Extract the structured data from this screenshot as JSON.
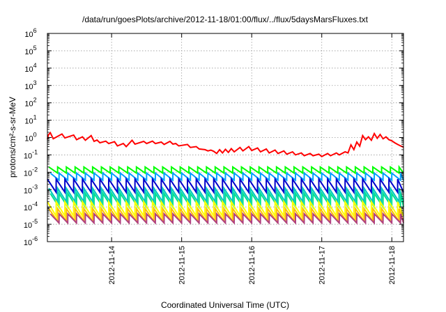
{
  "chart_data": {
    "type": "line",
    "title": "/data/run/goesPlots/archive/2012-11-18/01:00/flux/../flux/5daysMarsFluxes.txt",
    "xlabel": "Coordinated Universal Time (UTC)",
    "ylabel": "protons/cm²-s-sr-MeV",
    "yscale": "log",
    "ylim": [
      1e-06,
      1000000.0
    ],
    "xlim": [
      "2012-11-13 02:00",
      "2012-11-18 04:00"
    ],
    "grid": true,
    "legend": "none",
    "yticks": [
      {
        "base": "10",
        "exp": "-6"
      },
      {
        "base": "10",
        "exp": "-5"
      },
      {
        "base": "10",
        "exp": "-4"
      },
      {
        "base": "10",
        "exp": "-3"
      },
      {
        "base": "10",
        "exp": "-2"
      },
      {
        "base": "10",
        "exp": "-1"
      },
      {
        "base": "10",
        "exp": "0"
      },
      {
        "base": "10",
        "exp": "1"
      },
      {
        "base": "10",
        "exp": "2"
      },
      {
        "base": "10",
        "exp": "3"
      },
      {
        "base": "10",
        "exp": "4"
      },
      {
        "base": "10",
        "exp": "5"
      },
      {
        "base": "10",
        "exp": "6"
      }
    ],
    "xticks": [
      {
        "label": "2012-11-14",
        "value": "2012-11-14 00:00"
      },
      {
        "label": "2012-11-15",
        "value": "2012-11-15 00:00"
      },
      {
        "label": "2012-11-16",
        "value": "2012-11-16 00:00"
      },
      {
        "label": "2012-11-17",
        "value": "2012-11-17 00:00"
      },
      {
        "label": "2012-11-18",
        "value": "2012-11-18 00:00"
      }
    ],
    "series": [
      {
        "color": "#ff0000",
        "values": [
          [
            "2012-11-13 02:00",
            0.8
          ],
          [
            "2012-11-13 02:20",
            1.4
          ],
          [
            "2012-11-13 03:00",
            1.9
          ],
          [
            "2012-11-13 04:00",
            0.85
          ],
          [
            "2012-11-13 07:00",
            1.6
          ],
          [
            "2012-11-13 08:00",
            0.95
          ],
          [
            "2012-11-13 11:00",
            1.4
          ],
          [
            "2012-11-13 12:00",
            0.75
          ],
          [
            "2012-11-13 14:00",
            1.1
          ],
          [
            "2012-11-13 15:00",
            0.7
          ],
          [
            "2012-11-13 17:00",
            1.3
          ],
          [
            "2012-11-13 18:00",
            0.6
          ],
          [
            "2012-11-13 19:00",
            0.72
          ],
          [
            "2012-11-13 20:00",
            0.5
          ],
          [
            "2012-11-13 22:00",
            0.62
          ],
          [
            "2012-11-13 23:00",
            0.45
          ],
          [
            "2012-11-14 01:00",
            0.58
          ],
          [
            "2012-11-14 02:00",
            0.33
          ],
          [
            "2012-11-14 04:00",
            0.45
          ],
          [
            "2012-11-14 05:00",
            0.3
          ],
          [
            "2012-11-14 07:00",
            0.7
          ],
          [
            "2012-11-14 08:00",
            0.42
          ],
          [
            "2012-11-14 11:00",
            0.6
          ],
          [
            "2012-11-14 12:00",
            0.45
          ],
          [
            "2012-11-14 14:00",
            0.62
          ],
          [
            "2012-11-14 15:00",
            0.45
          ],
          [
            "2012-11-14 17:00",
            0.55
          ],
          [
            "2012-11-14 18:00",
            0.4
          ],
          [
            "2012-11-14 20:00",
            0.6
          ],
          [
            "2012-11-14 21:00",
            0.42
          ],
          [
            "2012-11-14 22:00",
            0.45
          ],
          [
            "2012-11-14 23:00",
            0.33
          ],
          [
            "2012-11-15 02:00",
            0.4
          ],
          [
            "2012-11-15 03:00",
            0.27
          ],
          [
            "2012-11-15 05:00",
            0.3
          ],
          [
            "2012-11-15 06:00",
            0.22
          ],
          [
            "2012-11-15 08:00",
            0.2
          ],
          [
            "2012-11-15 09:00",
            0.17
          ],
          [
            "2012-11-15 10:00",
            0.19
          ],
          [
            "2012-11-15 11:00",
            0.16
          ],
          [
            "2012-11-15 12:00",
            0.12
          ],
          [
            "2012-11-15 13:00",
            0.2
          ],
          [
            "2012-11-15 14:00",
            0.13
          ],
          [
            "2012-11-15 15:00",
            0.21
          ],
          [
            "2012-11-15 16:00",
            0.14
          ],
          [
            "2012-11-15 17:00",
            0.23
          ],
          [
            "2012-11-15 18:00",
            0.15
          ],
          [
            "2012-11-15 20:00",
            0.27
          ],
          [
            "2012-11-15 21:00",
            0.17
          ],
          [
            "2012-11-15 23:00",
            0.3
          ],
          [
            "2012-11-16 00:00",
            0.18
          ],
          [
            "2012-11-16 02:00",
            0.25
          ],
          [
            "2012-11-16 03:00",
            0.15
          ],
          [
            "2012-11-16 05:00",
            0.22
          ],
          [
            "2012-11-16 06:00",
            0.13
          ],
          [
            "2012-11-16 08:00",
            0.19
          ],
          [
            "2012-11-16 09:00",
            0.12
          ],
          [
            "2012-11-16 11:00",
            0.17
          ],
          [
            "2012-11-16 12:00",
            0.11
          ],
          [
            "2012-11-16 14:00",
            0.15
          ],
          [
            "2012-11-16 15:00",
            0.1
          ],
          [
            "2012-11-16 17:00",
            0.13
          ],
          [
            "2012-11-16 18:00",
            0.09
          ],
          [
            "2012-11-16 20:00",
            0.12
          ],
          [
            "2012-11-16 21:00",
            0.09
          ],
          [
            "2012-11-16 23:00",
            0.11
          ],
          [
            "2012-11-17 00:00",
            0.08
          ],
          [
            "2012-11-17 02:00",
            0.12
          ],
          [
            "2012-11-17 03:00",
            0.09
          ],
          [
            "2012-11-17 05:00",
            0.13
          ],
          [
            "2012-11-17 06:00",
            0.1
          ],
          [
            "2012-11-17 08:00",
            0.15
          ],
          [
            "2012-11-17 09:00",
            0.13
          ],
          [
            "2012-11-17 10:00",
            0.38
          ],
          [
            "2012-11-17 11:00",
            0.2
          ],
          [
            "2012-11-17 12:00",
            0.55
          ],
          [
            "2012-11-17 13:00",
            0.32
          ],
          [
            "2012-11-17 14:00",
            1.3
          ],
          [
            "2012-11-17 15:00",
            0.75
          ],
          [
            "2012-11-17 16:00",
            1.1
          ],
          [
            "2012-11-17 17:00",
            0.7
          ],
          [
            "2012-11-17 18:00",
            1.7
          ],
          [
            "2012-11-17 19:00",
            0.9
          ],
          [
            "2012-11-17 20:00",
            1.5
          ],
          [
            "2012-11-17 21:00",
            0.85
          ],
          [
            "2012-11-17 22:00",
            1.1
          ],
          [
            "2012-11-17 23:00",
            0.75
          ],
          [
            "2012-11-18 00:00",
            0.65
          ],
          [
            "2012-11-18 01:00",
            0.5
          ],
          [
            "2012-11-18 02:00",
            0.4
          ],
          [
            "2012-11-18 03:00",
            0.33
          ],
          [
            "2012-11-18 04:00",
            0.28
          ]
        ]
      },
      {
        "color": "#00ff00",
        "sawtooth": {
          "period_hours": 3,
          "peak": 0.02,
          "trough": 0.009
        }
      },
      {
        "color": "#00a0ff",
        "sawtooth": {
          "period_hours": 3,
          "peak": 0.009,
          "trough": 0.0035
        }
      },
      {
        "color": "#0000cc",
        "sawtooth": {
          "period_hours": 3,
          "peak": 0.004,
          "trough": 0.0007
        }
      },
      {
        "color": "#00c8c0",
        "sawtooth": {
          "period_hours": 3,
          "peak": 0.0012,
          "trough": 0.0002
        }
      },
      {
        "color": "#00e090",
        "sawtooth": {
          "period_hours": 3,
          "peak": 0.0006,
          "trough": 0.0001
        }
      },
      {
        "color": "#ffff00",
        "sawtooth": {
          "period_hours": 3,
          "peak": 0.0002,
          "trough": 3e-05
        }
      },
      {
        "color": "#ffc000",
        "sawtooth": {
          "period_hours": 3,
          "peak": 8e-05,
          "trough": 1.5e-05
        }
      },
      {
        "color": "#b04080",
        "sawtooth": {
          "period_hours": 3,
          "peak": 4e-05,
          "trough": 1.2e-05
        }
      }
    ]
  }
}
